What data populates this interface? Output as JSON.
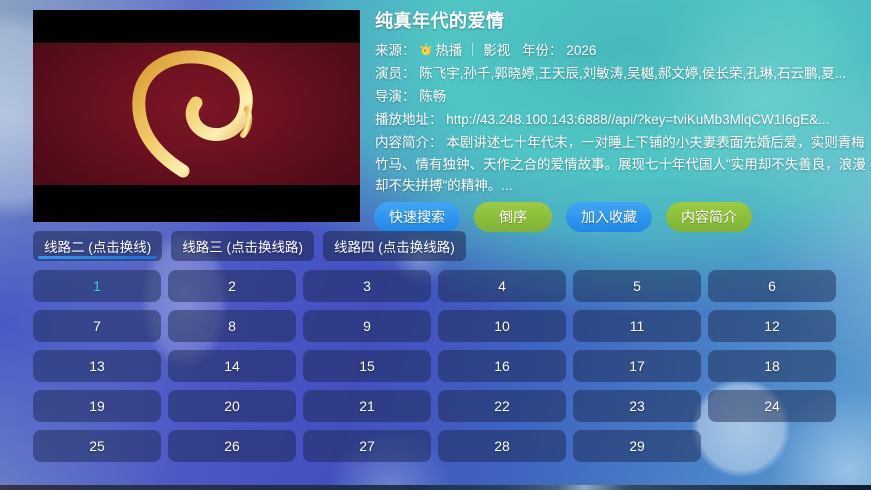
{
  "info": {
    "title": "纯真年代的爱情",
    "source_label": "来源：",
    "source_name": "热播",
    "divider": "｜",
    "category": "影视",
    "year_label": "年份：",
    "year": "2026",
    "actors_label": "演员：",
    "actors": "陈飞宇,孙千,郭晓婷,王天辰,刘敏涛,吴樾,郝文婷,侯长荣,孔琳,石云鹏,夏...",
    "director_label": "导演：",
    "director": "陈畅",
    "play_url_label": "播放地址：",
    "play_url": "http://43.248.100.143:6888//api/?key=tviKuMb3MlqCW1I6gE&...",
    "summary_label": "内容简介：",
    "summary": "本剧讲述七十年代末，一对睡上下铺的小夫妻表面先婚后爱，实则青梅竹马、情有独钟、天作之合的爱情故事。展现七十年代国人\"实用却不失善良，浪漫却不失拼搏\"的精神。..."
  },
  "actions": [
    {
      "key": "quick-search",
      "label": "快速搜索",
      "variant": "blue"
    },
    {
      "key": "reverse-order",
      "label": "倒序",
      "variant": "green"
    },
    {
      "key": "add-favorite",
      "label": "加入收藏",
      "variant": "blue"
    },
    {
      "key": "content-summary",
      "label": "内容简介",
      "variant": "green"
    }
  ],
  "line_tabs": [
    {
      "key": "line-2",
      "label": "线路二 (点击换线)",
      "selected": true
    },
    {
      "key": "line-3",
      "label": "线路三 (点击换线路)",
      "selected": false
    },
    {
      "key": "line-4",
      "label": "线路四 (点击换线路)",
      "selected": false
    }
  ],
  "episodes": {
    "selected": "1",
    "items": [
      "1",
      "2",
      "3",
      "4",
      "5",
      "6",
      "7",
      "8",
      "9",
      "10",
      "11",
      "12",
      "13",
      "14",
      "15",
      "16",
      "17",
      "18",
      "19",
      "20",
      "21",
      "22",
      "23",
      "24",
      "25",
      "26",
      "27",
      "28",
      "29"
    ]
  },
  "colors": {
    "accent_blue": "#2e9bf0",
    "accent_green": "#8fc43a",
    "selected_episode": "#35d6dc",
    "tab_underline": "#2288ee"
  }
}
